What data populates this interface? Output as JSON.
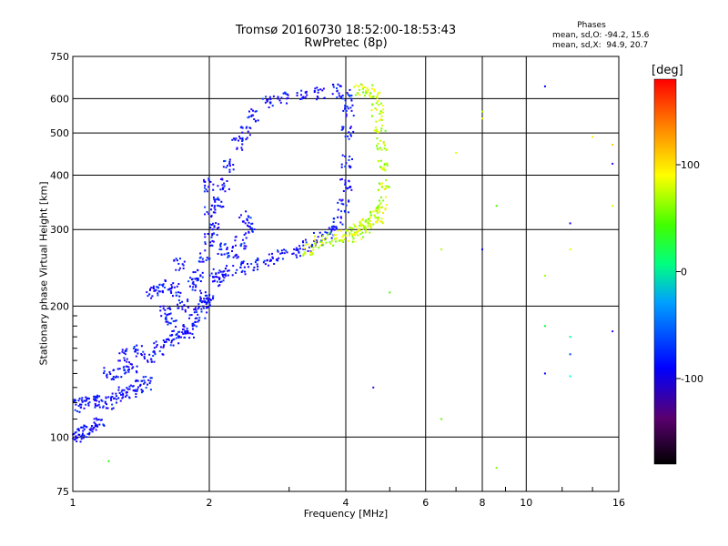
{
  "chart_data": {
    "type": "scatter",
    "title": "Tromsø 20160730 18:52:00-18:53:43",
    "subtitle": "RwPretec (8p)",
    "xlabel": "Frequency [MHz]",
    "ylabel": "Stationary phase Virtual Height [km]",
    "x_scale": "log",
    "y_scale": "log",
    "xlim": [
      1,
      16
    ],
    "ylim": [
      75,
      750
    ],
    "x_ticks": [
      "1",
      "2",
      "4",
      "6",
      "8",
      "10",
      "16"
    ],
    "y_ticks": [
      "75",
      "100",
      "200",
      "300",
      "400",
      "500",
      "600",
      "750"
    ],
    "x_tick_values": [
      1,
      2,
      4,
      6,
      8,
      10,
      16
    ],
    "y_tick_values": [
      75,
      100,
      200,
      300,
      400,
      500,
      600,
      750
    ],
    "grid": true,
    "stats": {
      "header": "Phases",
      "line_o": "mean, sd,O: -94.2, 15.6",
      "line_x": "mean, sd,X:  94.9, 20.7"
    },
    "colorbar": {
      "label": "[deg]",
      "range": [
        -180,
        180
      ],
      "ticks": [
        "100",
        "0",
        "-100"
      ],
      "tick_values": [
        100,
        0,
        -100
      ]
    },
    "series": [
      {
        "mode": "O",
        "phase": -95,
        "points": [
          [
            1.0,
            100
          ],
          [
            1.03,
            101
          ],
          [
            1.06,
            103
          ],
          [
            1.1,
            105
          ],
          [
            1.14,
            108
          ],
          [
            1.02,
            118
          ],
          [
            1.06,
            120
          ],
          [
            1.1,
            122
          ],
          [
            1.15,
            121
          ],
          [
            1.2,
            120
          ],
          [
            1.25,
            123
          ],
          [
            1.3,
            126
          ],
          [
            1.35,
            128
          ],
          [
            1.4,
            131
          ],
          [
            1.45,
            133
          ],
          [
            1.2,
            140
          ],
          [
            1.28,
            142
          ],
          [
            1.35,
            145
          ],
          [
            1.3,
            155
          ],
          [
            1.4,
            158
          ],
          [
            1.48,
            152
          ],
          [
            1.55,
            160
          ],
          [
            1.62,
            166
          ],
          [
            1.7,
            170
          ],
          [
            1.75,
            176
          ],
          [
            1.5,
            215
          ],
          [
            1.55,
            218
          ],
          [
            1.62,
            222
          ],
          [
            1.68,
            218
          ],
          [
            1.72,
            250
          ],
          [
            1.8,
            175
          ],
          [
            1.85,
            185
          ],
          [
            1.9,
            192
          ],
          [
            1.95,
            200
          ],
          [
            2.0,
            205
          ],
          [
            1.9,
            235
          ],
          [
            1.95,
            260
          ],
          [
            2.0,
            285
          ],
          [
            2.0,
            330
          ],
          [
            2.0,
            380
          ],
          [
            2.05,
            230
          ],
          [
            2.1,
            235
          ],
          [
            2.2,
            240
          ],
          [
            2.35,
            245
          ],
          [
            2.5,
            250
          ],
          [
            2.7,
            255
          ],
          [
            2.9,
            262
          ],
          [
            3.1,
            268
          ],
          [
            3.3,
            275
          ],
          [
            3.5,
            285
          ],
          [
            3.7,
            295
          ],
          [
            3.85,
            310
          ],
          [
            3.95,
            340
          ],
          [
            4.0,
            380
          ],
          [
            4.02,
            430
          ],
          [
            4.04,
            500
          ],
          [
            4.05,
            560
          ],
          [
            4.0,
            610
          ],
          [
            3.8,
            625
          ],
          [
            3.5,
            615
          ],
          [
            3.2,
            605
          ],
          [
            2.9,
            600
          ],
          [
            2.7,
            590
          ],
          [
            2.5,
            550
          ],
          [
            2.4,
            500
          ],
          [
            2.3,
            470
          ],
          [
            2.2,
            420
          ],
          [
            2.15,
            380
          ],
          [
            2.1,
            350
          ],
          [
            2.05,
            300
          ],
          [
            2.4,
            320
          ],
          [
            2.45,
            300
          ],
          [
            2.35,
            280
          ],
          [
            2.25,
            265
          ],
          [
            2.15,
            270
          ],
          [
            1.95,
            210
          ],
          [
            1.85,
            225
          ],
          [
            1.75,
            200
          ],
          [
            1.65,
            185
          ],
          [
            1.6,
            195
          ]
        ]
      },
      {
        "mode": "X",
        "phase": 95,
        "points": [
          [
            3.3,
            270
          ],
          [
            3.5,
            280
          ],
          [
            3.7,
            285
          ],
          [
            3.9,
            288
          ],
          [
            4.1,
            290
          ],
          [
            4.3,
            295
          ],
          [
            4.5,
            305
          ],
          [
            4.7,
            320
          ],
          [
            4.8,
            345
          ],
          [
            4.85,
            380
          ],
          [
            4.85,
            420
          ],
          [
            4.8,
            470
          ],
          [
            4.75,
            520
          ],
          [
            4.7,
            565
          ],
          [
            4.65,
            600
          ],
          [
            4.5,
            625
          ],
          [
            4.3,
            630
          ],
          [
            4.6,
            330
          ],
          [
            4.4,
            312
          ],
          [
            4.2,
            300
          ]
        ]
      },
      {
        "mode": "noise",
        "points": [
          [
            6.5,
            110
          ],
          [
            7.0,
            450
          ],
          [
            8.0,
            560
          ],
          [
            8.0,
            540
          ],
          [
            8.6,
            340
          ],
          [
            8.6,
            85
          ],
          [
            8.0,
            270
          ],
          [
            6.5,
            270
          ],
          [
            11.0,
            640
          ],
          [
            11.0,
            235
          ],
          [
            11.0,
            180
          ],
          [
            11.0,
            140
          ],
          [
            12.5,
            310
          ],
          [
            12.5,
            270
          ],
          [
            12.5,
            170
          ],
          [
            12.5,
            155
          ],
          [
            12.5,
            138
          ],
          [
            15.5,
            470
          ],
          [
            15.5,
            425
          ],
          [
            15.5,
            340
          ],
          [
            15.5,
            175
          ],
          [
            14.0,
            490
          ],
          [
            5.0,
            215
          ],
          [
            4.6,
            130
          ],
          [
            1.2,
            88
          ]
        ]
      }
    ]
  }
}
